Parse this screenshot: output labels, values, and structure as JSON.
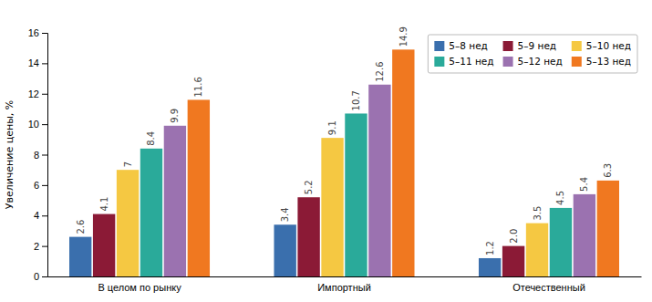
{
  "chart_data": {
    "type": "bar",
    "categories": [
      "В целом по рынку",
      "Импортный",
      "Отечественный"
    ],
    "series": [
      {
        "name": "5–8 нед",
        "color": "#3a6fad",
        "values": [
          2.6,
          3.4,
          1.2
        ]
      },
      {
        "name": "5–9 нед",
        "color": "#8b1a36",
        "values": [
          4.1,
          5.2,
          2.0
        ],
        "value_labels": [
          "4.1",
          "5.2",
          "2.0"
        ]
      },
      {
        "name": "5–10 нед",
        "color": "#f5c842",
        "values": [
          7.0,
          9.1,
          3.5
        ]
      },
      {
        "name": "5–11 нед",
        "color": "#2aaa9a",
        "values": [
          8.4,
          10.7,
          4.5
        ]
      },
      {
        "name": "5–12 нед",
        "color": "#9b72b0",
        "values": [
          9.9,
          12.6,
          5.4
        ]
      },
      {
        "name": "5–13 нед",
        "color": "#f07820",
        "values": [
          11.6,
          14.9,
          6.3
        ]
      }
    ],
    "ylabel": "Увеличение цены, %",
    "ylim": [
      0,
      16
    ],
    "yticks": [
      0,
      2,
      4,
      6,
      8,
      10,
      12,
      14,
      16
    ],
    "grid": false,
    "legend": "upper right",
    "data_labels": true
  }
}
